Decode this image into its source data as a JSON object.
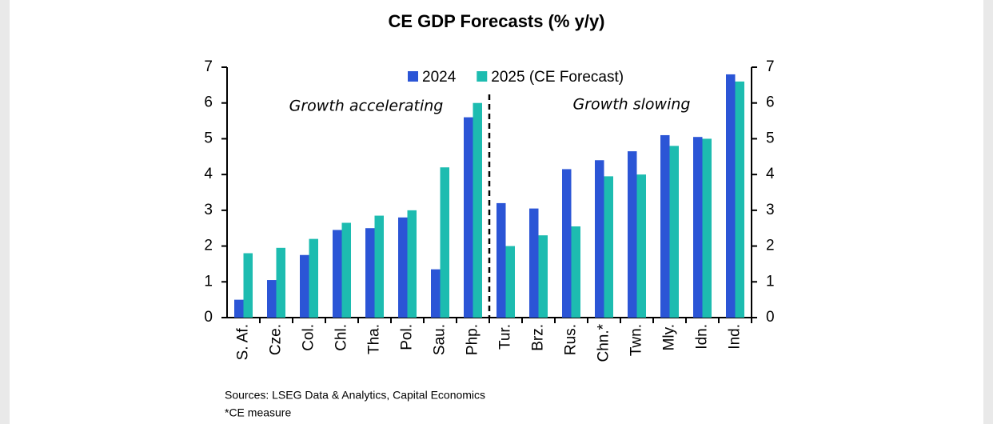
{
  "chart_data": {
    "type": "bar",
    "title": "CE GDP Forecasts (% y/y)",
    "categories": [
      "S. Af.",
      "Cze.",
      "Col.",
      "Chl.",
      "Tha.",
      "Pol.",
      "Sau.",
      "Php.",
      "Tur.",
      "Brz.",
      "Rus.",
      "Chn.*",
      "Twn.",
      "Mly.",
      "Idn.",
      "Ind."
    ],
    "series": [
      {
        "name": "2024",
        "color": "#2b55d6",
        "values": [
          0.5,
          1.05,
          1.75,
          2.45,
          2.5,
          2.8,
          1.35,
          5.6,
          3.2,
          3.05,
          4.15,
          4.4,
          4.65,
          5.1,
          5.05,
          6.8
        ]
      },
      {
        "name": "2025 (CE Forecast)",
        "color": "#1dbcb0",
        "values": [
          1.8,
          1.95,
          2.2,
          2.65,
          2.85,
          3.0,
          4.2,
          6.0,
          2.0,
          2.3,
          2.55,
          3.95,
          4.0,
          4.8,
          5.0,
          6.6
        ]
      }
    ],
    "ylim": [
      0,
      7
    ],
    "yticks": [
      0,
      1,
      2,
      3,
      4,
      5,
      6,
      7
    ],
    "y2lim": [
      0,
      7
    ],
    "y2ticks": [
      0,
      1,
      2,
      3,
      4,
      5,
      6,
      7
    ],
    "legend": "top",
    "annotations": [
      "Growth accelerating",
      "Growth slowing"
    ],
    "source": "Sources: LSEG Data & Analytics, Capital Economics",
    "footnote": "*CE measure"
  }
}
